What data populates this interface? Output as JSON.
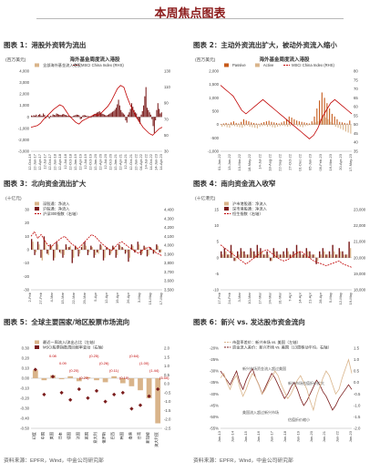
{
  "page": {
    "title": "本周焦点图表"
  },
  "sources": [
    "资料来源：EPFR，Wind，中金公司研究部",
    "资料来源：EPFR，Wind，中金公司研究部"
  ],
  "chart_data": [
    {
      "type": "bar",
      "panel_title": "图表 1：港股外资转为流出",
      "title": "海外基金周度流入港股",
      "units": "(百万美元)",
      "legend": [
        "全部海外基金流入港股",
        "MSCI China Index (RHS)"
      ],
      "left_axis_ticks": [
        "4,000",
        "3,000",
        "2,000",
        "1,000",
        "0",
        "-1,000",
        "-2,000",
        "-3,000"
      ],
      "right_axis_ticks": [
        "130",
        "110",
        "90",
        "70",
        "50",
        "30"
      ],
      "x_ticks": [
        "12-Oct-16",
        "12-Jan-17",
        "12-Apr-17",
        "12-Jul-17",
        "12-Oct-17",
        "12-Jan-18",
        "12-Apr-18",
        "12-Jul-18",
        "12-Oct-18",
        "12-Jan-19",
        "12-Apr-19",
        "12-Jul-19",
        "12-Oct-19",
        "12-Jan-20",
        "12-Apr-20",
        "12-Jul-20",
        "12-Oct-20",
        "12-Jan-21",
        "12-Apr-21",
        "12-Jul-21",
        "12-Oct-21",
        "12-Jan-22",
        "04-Apr-22",
        "14-Jul-22",
        "14-Oct-22",
        "14-Jan-23",
        "14-Apr-23"
      ],
      "ylim": [
        -3000,
        4000
      ],
      "y2lim": [
        30,
        130
      ],
      "series": [
        {
          "name": "全部海外基金流入港股",
          "values": [
            120,
            80,
            150,
            100,
            200,
            60,
            180,
            250,
            120,
            90,
            300,
            180,
            -120,
            80,
            120,
            -150,
            100,
            60,
            220,
            180,
            140,
            300,
            260,
            200,
            180,
            160,
            220,
            260,
            180,
            150,
            120,
            100,
            80,
            60,
            -50,
            90,
            120,
            160,
            200,
            180,
            140,
            -200,
            -150,
            120,
            160,
            140,
            100,
            80,
            60,
            40,
            -80,
            120,
            200,
            260,
            300,
            380,
            420,
            500,
            380,
            300,
            260,
            200,
            150,
            120,
            180,
            240,
            300,
            380,
            450,
            520,
            640,
            800,
            1100,
            1500,
            1000,
            600,
            400,
            300,
            200,
            -300,
            -500,
            200,
            400,
            700,
            1200,
            900,
            600,
            400,
            300,
            -200,
            -400,
            -600,
            200,
            500,
            1000,
            1800,
            2600,
            800,
            600,
            400,
            200,
            -200,
            -800,
            -1400,
            -300,
            600,
            1200,
            700,
            300,
            400
          ]
        },
        {
          "name": "MSCI China Index (RHS)",
          "values": [
            60,
            61,
            62,
            65,
            70,
            74,
            78,
            82,
            85,
            88,
            86,
            80,
            74,
            70,
            66,
            64,
            68,
            70,
            72,
            74,
            76,
            75,
            78,
            82,
            86,
            92,
            100,
            108,
            112,
            110,
            98,
            88,
            80,
            72,
            66,
            60,
            56,
            52,
            50,
            54,
            58,
            60
          ]
        }
      ]
    },
    {
      "type": "bar",
      "panel_title": "图表 2：主动外资流出扩大，被动外资流入缩小",
      "title": "海外基金周度流入港股",
      "units": "(百万美元)",
      "legend": [
        "Passive",
        "Active",
        "MSCI China Index (RHS)"
      ],
      "left_axis_ticks": [
        "2,000",
        "1,500",
        "1,000",
        "500",
        "0",
        "-500",
        "-1,000"
      ],
      "right_axis_ticks": [
        "80",
        "75",
        "70",
        "65",
        "60",
        "55",
        "50",
        "45",
        "40",
        "35"
      ],
      "x_ticks": [
        "01-Jan-22",
        "13-Jan-22",
        "10-Mar-22",
        "18-May-22",
        "14-Jul-22",
        "18-Aug-22",
        "22-Sep-22",
        "27-Oct-22",
        "01-Dec-22",
        "05-Jan-23",
        "09-Feb-23",
        "16-Mar-23",
        "20-Apr-23",
        "17-May-23"
      ],
      "ylim": [
        -1000,
        2000
      ],
      "y2lim": [
        35,
        80
      ],
      "series": [
        {
          "name": "Passive",
          "values": [
            20,
            40,
            60,
            30,
            80,
            120,
            60,
            40,
            100,
            200,
            150,
            120,
            80,
            60,
            40,
            30,
            60,
            90,
            120,
            140,
            100,
            80,
            60,
            40,
            80,
            120,
            200,
            300,
            260,
            200,
            150,
            120,
            100,
            80,
            60,
            40,
            120,
            300,
            600,
            900,
            1200,
            1000,
            800,
            600,
            400,
            300,
            200,
            100,
            80,
            60,
            40,
            150
          ]
        },
        {
          "name": "Active",
          "values": [
            -80,
            -60,
            -100,
            -120,
            -40,
            -60,
            -80,
            -100,
            -120,
            -60,
            -40,
            -80,
            -100,
            -120,
            -140,
            -80,
            -60,
            -40,
            -80,
            -60,
            -100,
            -120,
            -80,
            -60,
            -40,
            -60,
            -80,
            -60,
            -40,
            -20,
            -60,
            -80,
            -100,
            -60,
            -40,
            -20,
            40,
            80,
            120,
            200,
            300,
            260,
            200,
            100,
            40,
            -80,
            -120,
            -160,
            -200,
            -260,
            -300,
            -340
          ]
        },
        {
          "name": "MSCI China Index (RHS)",
          "values": [
            72,
            70,
            68,
            66,
            62,
            58,
            56,
            58,
            60,
            62,
            64,
            62,
            60,
            58,
            56,
            54,
            52,
            50,
            48,
            46,
            44,
            42,
            44,
            48,
            54,
            58,
            62,
            64,
            62,
            60,
            58,
            56
          ]
        }
      ]
    },
    {
      "type": "bar",
      "panel_title": "图表 3：北向资金流出扩大",
      "units": "(十亿元)",
      "legend": [
        "深股通：净流入",
        "沪股通：净流入",
        "沪深300指数（右轴）"
      ],
      "left_axis_ticks": [
        "30",
        "20",
        "10",
        "0",
        "-10",
        "-20",
        "-30"
      ],
      "right_axis_ticks": [
        "4,400",
        "4,300",
        "4,200",
        "4,100",
        "4,000",
        "3,900",
        "3,800",
        "3,700",
        "3,600",
        "3,500"
      ],
      "x_ticks": [
        "2-Feb",
        "27-Feb",
        "4-Mar",
        "15-Mar",
        "22-Mar",
        "29-Mar",
        "5-Apr",
        "12-Apr",
        "19-Apr",
        "26-Apr",
        "3-May",
        "10-May",
        "17-May"
      ],
      "ylim": [
        -30,
        30
      ],
      "y2lim": [
        3500,
        4400
      ],
      "series": [
        {
          "name": "深股通：净流入",
          "values": [
            8,
            -4,
            6,
            -6,
            10,
            -3,
            4,
            -8,
            6,
            -2,
            -6,
            4,
            2,
            -10,
            3,
            -5,
            2,
            6,
            -4,
            3,
            -6,
            -2,
            4,
            -8,
            2,
            -4,
            3,
            -6,
            4,
            2,
            -3,
            -9,
            4,
            -2,
            6,
            -4,
            3,
            -5,
            2,
            -3,
            4,
            -2
          ]
        },
        {
          "name": "沪股通：净流入",
          "values": [
            6,
            -2,
            4,
            -8,
            6,
            -4,
            3,
            -6,
            4,
            -3,
            -4,
            2,
            3,
            -6,
            2,
            -3,
            4,
            3,
            -2,
            2,
            -4,
            -3,
            3,
            -6,
            1,
            -3,
            2,
            -4,
            3,
            1,
            -2,
            -6,
            3,
            -1,
            4,
            -3,
            2,
            -4,
            1,
            -2,
            3,
            -2
          ]
        },
        {
          "name": "沪深300指数（右轴）",
          "values": [
            4100,
            4150,
            4080,
            4120,
            4060,
            4000,
            3980,
            4020,
            4050,
            4080,
            4100,
            4060,
            4020,
            3990,
            3960,
            4000,
            4040,
            4080,
            4120,
            4100,
            4060,
            4020,
            3990,
            3960,
            3940,
            3980,
            4020,
            4040,
            4010,
            3980,
            3960,
            3930,
            3910,
            3940,
            3960,
            3980,
            3950,
            3920,
            3900,
            3880
          ]
        }
      ]
    },
    {
      "type": "bar",
      "panel_title": "图表 4：南向资金流入收窄",
      "units": "(十亿港元)",
      "legend": [
        "沪市港股通：净流入",
        "深市港股通：净流入",
        "恒生指数（右轴）"
      ],
      "left_axis_ticks": [
        "15",
        "10",
        "5",
        "0",
        "-5",
        "-10"
      ],
      "right_axis_ticks": [
        "23,000",
        "22,000",
        "21,000",
        "20,000",
        "19,000",
        "18,000"
      ],
      "x_ticks": [
        "17-Feb",
        "24-Feb",
        "3-Mar",
        "10-Mar",
        "17-Mar",
        "24-Mar",
        "31-Mar",
        "7-Apr",
        "14-Apr",
        "21-Apr",
        "28-Apr",
        "5-May",
        "12-May",
        "19-May"
      ],
      "ylim": [
        -10,
        15
      ],
      "y2lim": [
        18000,
        23000
      ],
      "series": [
        {
          "name": "沪市港股通：净流入",
          "values": [
            2,
            3,
            1,
            4,
            -1,
            2,
            3,
            2,
            1,
            3,
            2,
            4,
            3,
            1,
            2,
            -1,
            3,
            2,
            1,
            2,
            3,
            1,
            2,
            4,
            2,
            1,
            3,
            2,
            1,
            -2,
            2,
            3,
            1,
            2,
            4,
            1,
            3,
            2,
            1,
            5
          ]
        },
        {
          "name": "深市港股通：净流入",
          "values": [
            1,
            2,
            1,
            2,
            -1,
            1,
            2,
            1,
            1,
            2,
            1,
            2,
            2,
            1,
            1,
            -1,
            2,
            1,
            1,
            1,
            2,
            1,
            1,
            2,
            1,
            1,
            2,
            1,
            1,
            -1,
            1,
            2,
            1,
            1,
            2,
            1,
            2,
            1,
            1,
            3
          ]
        },
        {
          "name": "恒生指数（右轴）",
          "values": [
            20800,
            20600,
            20400,
            20200,
            20000,
            19800,
            19600,
            19800,
            20000,
            20200,
            20400,
            20500,
            20300,
            20100,
            19900,
            19800,
            19900,
            20100,
            20300,
            20400,
            20200,
            20000,
            19800,
            19700,
            19600,
            19500,
            19600,
            19700,
            19800,
            19600,
            19500,
            19400
          ]
        }
      ]
    },
    {
      "type": "bar",
      "panel_title": "图表 5：全球主要国家/地区股票市场流向",
      "legend": [
        "最近一周流入/流出占比（左轴）",
        "MSCI股票指数周回报率变动（右轴）"
      ],
      "left_axis_ticks": [
        "0.30",
        "0.20",
        "0.10",
        "0.00",
        "-0.10",
        "-0.20",
        "-0.30",
        "-0.40",
        "-0.50"
      ],
      "right_axis_ticks": [
        "2.0",
        "1.5",
        "1.0",
        "0.5",
        "0.0",
        "-0.5",
        "-1.0",
        "-1.5",
        "-2.0",
        "-2.5"
      ],
      "categories": [
        "印度",
        "中国",
        "美国",
        "日本",
        "德国",
        "法国",
        "英国",
        "意大利",
        "俄罗斯",
        "巴西",
        "韩国",
        "香港",
        "台湾",
        "新加坡",
        "澳大利亚"
      ],
      "ylim": [
        -0.5,
        0.3
      ],
      "y2lim": [
        -2.5,
        2.0
      ],
      "series": [
        {
          "name": "最近一周流入/流出占比（左轴）",
          "values": [
            0.08,
            -0.02,
            0.03,
            -0.01,
            0.02,
            -0.03,
            0.01,
            -0.02,
            -0.04,
            0.02,
            -0.05,
            -0.08,
            -0.12,
            -0.2,
            -0.45
          ]
        },
        {
          "name": "MSCI股票指数周回报率变动（右轴）",
          "values": [
            0.8,
            -0.6,
            0.4,
            -0.5,
            -0.9,
            -0.3,
            -0.8,
            -0.4,
            -1.0,
            -0.6,
            -0.5,
            -1.4,
            -1.2,
            -0.7,
            -0.3
          ]
        }
      ],
      "data_labels": [
        "0.08",
        "0.09",
        "(0.20)",
        "(0.23)",
        "(0.25)",
        "(0.26)",
        "(0.11)",
        "(0.10)",
        "(0.64)",
        "(1.00)",
        "(1.44)",
        "(3.50)"
      ]
    },
    {
      "type": "line",
      "panel_title": "图表 6：新兴 vs. 发达股市资金流向",
      "legend": [
        "市盈率差价：新兴市场 vs. 美国（左轴）",
        "资金流入差价：新兴市场 vs. 美国（13周移动平均，右轴）"
      ],
      "annotations": [
        "新兴市场资金流入超过美国",
        "美国流入超过新兴市场",
        "新兴市场估值折价扩大",
        "估值折价缩小"
      ],
      "left_axis_ticks": [
        "-20%",
        "-25%",
        "-30%",
        "-35%",
        "-40%",
        "-45%",
        "-50%",
        "-55%"
      ],
      "right_axis_ticks": [
        "1.5",
        "1.0",
        "0.5",
        "0.0",
        "-0.5",
        "-1.0",
        "-1.5",
        "-2.0"
      ],
      "x_ticks": [
        "Jan-13",
        "Jan-14",
        "Jan-15",
        "Jan-16",
        "Jan-17",
        "Jan-18",
        "Jan-19",
        "Jan-20",
        "Jan-21",
        "Jan-22",
        "Jan-23"
      ],
      "ylim": [
        -0.55,
        -0.2
      ],
      "y2lim": [
        -2.0,
        1.5
      ],
      "series": [
        {
          "name": "市盈率差价：新兴市场 vs. 美国（左轴）",
          "values": [
            -0.3,
            -0.32,
            -0.34,
            -0.36,
            -0.33,
            -0.3,
            -0.35,
            -0.38,
            -0.34,
            -0.31,
            -0.29,
            -0.33,
            -0.36,
            -0.4,
            -0.37,
            -0.34,
            -0.31,
            -0.33,
            -0.36,
            -0.39,
            -0.42,
            -0.4,
            -0.37,
            -0.35,
            -0.38,
            -0.42,
            -0.45,
            -0.43,
            -0.4,
            -0.37,
            -0.34,
            -0.36,
            -0.39,
            -0.41,
            -0.44,
            -0.47,
            -0.45,
            -0.42,
            -0.4,
            -0.38,
            -0.36,
            -0.38
          ]
        },
        {
          "name": "资金流入差价：新兴市场 vs. 美国（13周移动平均，右轴）",
          "values": [
            0.2,
            0.4,
            0.0,
            -0.3,
            0.1,
            0.3,
            -0.2,
            -0.6,
            -0.3,
            0.1,
            0.4,
            0.2,
            -0.1,
            -0.5,
            -0.3,
            0.0,
            0.2,
            0.5,
            0.3,
            -0.1,
            -0.4,
            -0.7,
            -0.5,
            -0.2,
            0.1,
            0.3,
            0.0,
            -0.3,
            -0.8,
            -1.2,
            -0.6,
            -0.2,
            0.2,
            0.5,
            0.3,
            -0.1,
            -0.5,
            -0.3,
            0.2,
            0.6,
            1.0,
            0.4
          ]
        }
      ]
    }
  ]
}
